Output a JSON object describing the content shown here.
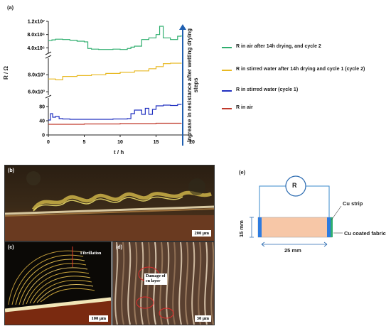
{
  "figure": {
    "panel_a_label": "(a)",
    "panel_b_label": "(b)",
    "panel_c_label": "(c)",
    "panel_d_label": "(d)",
    "panel_e_label": "(e)"
  },
  "chart_data": {
    "type": "line",
    "xlabel": "t / h",
    "ylabel": "R / Ω",
    "xlim": [
      0,
      20
    ],
    "x_ticks": [
      "0",
      "5",
      "10",
      "15",
      "20"
    ],
    "y_ticks_top": [
      "1.2x10⁷",
      "8.0x10⁶",
      "4.0x10⁶"
    ],
    "y_ticks_mid": [
      "8.0x10³",
      "6.0x10³"
    ],
    "y_ticks_bottom": [
      "80",
      "40",
      "0"
    ],
    "side_annotation": "Increase in resistance after wetting drying steps",
    "series": [
      {
        "name": "R in air after 14h drying, and cycle 2",
        "color": "#2fae6e",
        "x": [
          0,
          0.5,
          1,
          2,
          3,
          4,
          5,
          5.5,
          6,
          7,
          8,
          9,
          10,
          11,
          11.5,
          12,
          13,
          14,
          15,
          15.5,
          16,
          17,
          18,
          18.5
        ],
        "y": [
          6200000.0,
          6400000.0,
          6600000.0,
          6500000.0,
          6300000.0,
          6000000.0,
          5800000.0,
          3800000.0,
          3600000.0,
          3500000.0,
          3500000.0,
          3600000.0,
          3500000.0,
          3800000.0,
          4200000.0,
          4500000.0,
          6500000.0,
          7000000.0,
          8000000.0,
          10500000.0,
          7000000.0,
          6500000.0,
          7500000.0,
          7800000.0
        ]
      },
      {
        "name": "R in stirred water after 14h drying and cycle 1 (cycle 2)",
        "color": "#e8b923",
        "x": [
          0,
          1,
          2,
          4,
          6,
          8,
          10,
          12,
          14,
          15,
          16,
          17,
          18.5
        ],
        "y": [
          7500,
          7400,
          7800,
          7900,
          8000,
          8150,
          8300,
          8450,
          8700,
          8950,
          9300,
          9350,
          9400
        ]
      },
      {
        "name": "R in stirred water (cycle 1)",
        "color": "#2030c0",
        "x": [
          0,
          0.3,
          0.6,
          1,
          1.5,
          2,
          3,
          5,
          7,
          9,
          11,
          11.5,
          12,
          13,
          13.5,
          14,
          14.5,
          15,
          16,
          17,
          18,
          18.5
        ],
        "y": [
          42,
          60,
          50,
          52,
          46,
          45,
          44,
          44,
          44,
          45,
          46,
          60,
          70,
          58,
          75,
          58,
          72,
          82,
          84,
          83,
          86,
          85
        ]
      },
      {
        "name": "R in air",
        "color": "#c0392b",
        "x": [
          0,
          5,
          10,
          15,
          18.5
        ],
        "y": [
          30,
          31,
          32,
          33,
          34
        ]
      }
    ]
  },
  "micrographs": {
    "b_scale": "200 µm",
    "c_scale": "100 µm",
    "d_scale": "30 µm",
    "c_annotation": "Fibrillation",
    "d_annotation_line1": "Damage of",
    "d_annotation_line2": "cu layer"
  },
  "schematic": {
    "resistor_label": "R",
    "cu_strip_label": "Cu strip",
    "fabric_label": "Cu coated fabric",
    "height_label": "15 mm",
    "width_label": "25 mm"
  }
}
